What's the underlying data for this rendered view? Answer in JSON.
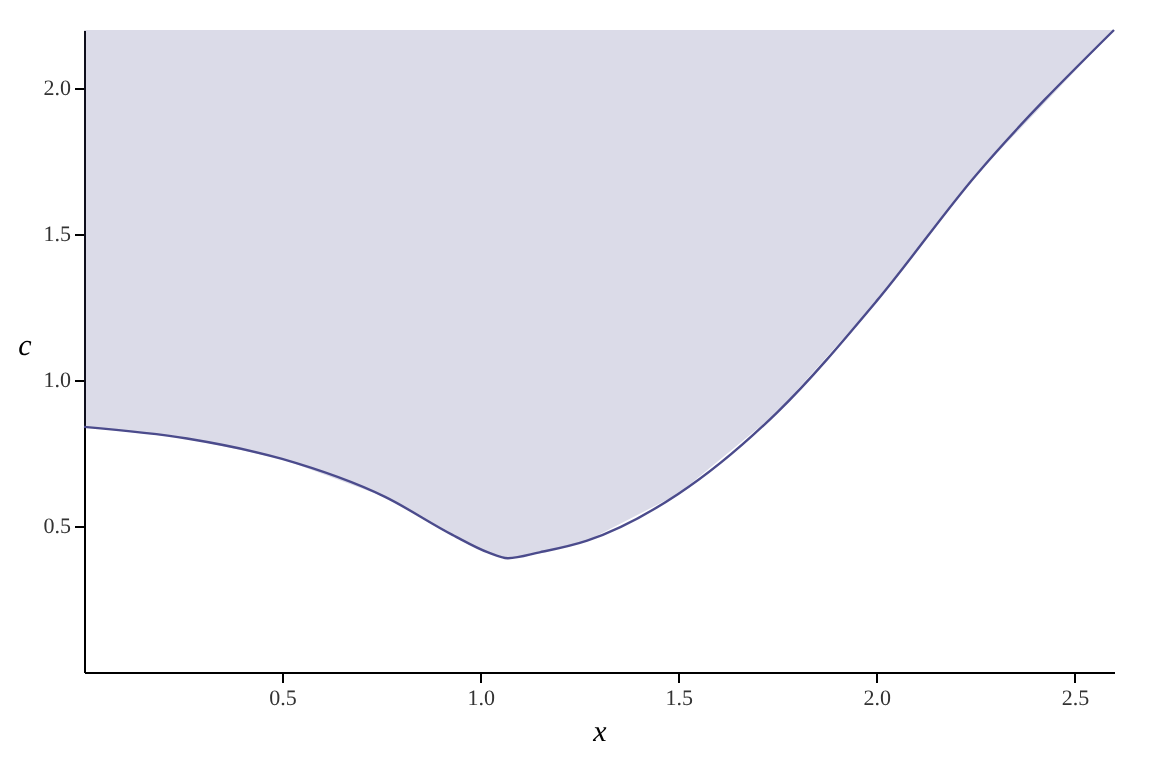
{
  "chart_data": {
    "type": "line",
    "xlabel": "x",
    "ylabel": "c",
    "x": [
      0,
      0.26,
      0.5,
      0.76,
      0.93,
      1.02,
      1.07,
      1.15,
      1.27,
      1.5,
      1.75,
      2.0,
      2.25,
      2.6
    ],
    "series": [
      {
        "color": "#4b4b8c",
        "values": [
          0.84,
          0.8,
          0.73,
          0.6,
          0.47,
          0.41,
          0.39,
          0.41,
          0.45,
          0.61,
          0.89,
          1.27,
          1.7,
          2.2
        ],
        "lower": [
          0.84,
          0.8,
          0.73,
          0.6,
          0.47,
          0.41,
          0.39,
          0.41,
          0.45,
          0.61,
          0.89,
          1.27,
          1.7,
          2.2
        ],
        "upper": [
          2.2,
          2.2,
          2.2,
          2.2,
          2.2,
          2.2,
          2.2,
          2.2,
          2.2,
          2.2,
          2.2,
          2.2,
          2.2,
          2.2
        ]
      }
    ],
    "xlim": [
      0,
      2.6
    ],
    "ylim": [
      0,
      2.2
    ],
    "xticks": [
      0.5,
      {
        "value": 1,
        "label": "1.0"
      },
      1.5,
      {
        "value": 2,
        "label": "2.0"
      },
      2.5
    ],
    "yticks": [
      0.5,
      {
        "value": 1,
        "label": "1.0"
      },
      1.5,
      {
        "value": 2,
        "label": "2.0"
      }
    ],
    "grid": false,
    "marker": "none",
    "line_style": "solid"
  }
}
